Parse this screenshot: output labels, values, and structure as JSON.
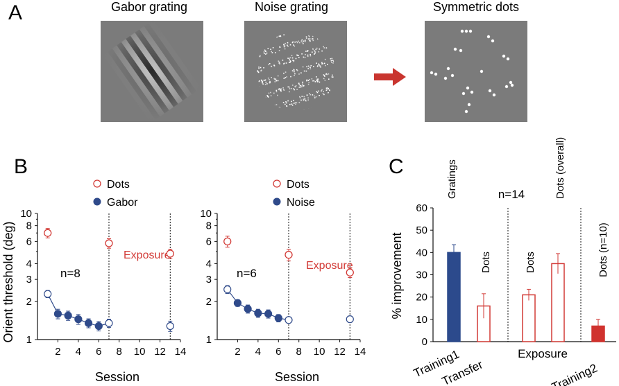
{
  "panel_labels": {
    "a": "A",
    "b": "B",
    "c": "C"
  },
  "panel_a": {
    "images": [
      {
        "title": "Gabor grating"
      },
      {
        "title": "Noise grating"
      },
      {
        "title": "Symmetric dots"
      }
    ]
  },
  "panel_b": {
    "ylabel": "Orient threshold (deg)",
    "xlabel": "Session",
    "ytick_labels": [
      "1",
      "2",
      "3",
      "4",
      "6",
      "8",
      "10"
    ],
    "xtick_labels": [
      "2",
      "4",
      "6",
      "8",
      "10",
      "12",
      "14"
    ],
    "exposure_label": "Exposure"
  },
  "panel_c": {
    "ylabel": "% improvement",
    "n_label": "n=14",
    "ytick_labels": [
      "0",
      "10",
      "20",
      "30",
      "40",
      "50",
      "60"
    ],
    "group_labels": [
      "Training1",
      "Transfer",
      "Exposure",
      "Training2"
    ],
    "bar_labels": [
      "Gratings",
      "Dots",
      "Dots",
      "Dots (overall)",
      "Dots (n=10)"
    ]
  },
  "colors": {
    "navy": "#2f4a8a",
    "red": "#d23a36",
    "bar_fill_navy": "#2c4a8c",
    "bar_fill_red": "#d0322e"
  },
  "chart_data": [
    {
      "type": "scatter",
      "legend": [
        "Dots",
        "Gabor"
      ],
      "n_label": "n=8",
      "xlabel": "Session",
      "ylabel": "Orient threshold (deg)",
      "yscale": "log",
      "ylim": [
        1,
        10
      ],
      "xlim": [
        0,
        14
      ],
      "series": [
        {
          "name": "Dots",
          "x": [
            1,
            7,
            13
          ],
          "y": [
            7.0,
            5.8,
            4.8
          ],
          "err": [
            0.6,
            0.5,
            0.4
          ]
        },
        {
          "name": "Gabor",
          "x": [
            1,
            2,
            3,
            4,
            5,
            6,
            7,
            13
          ],
          "y": [
            2.3,
            1.6,
            1.55,
            1.45,
            1.35,
            1.28,
            1.35,
            1.28
          ],
          "err": [
            0.15,
            0.14,
            0.13,
            0.13,
            0.11,
            0.11,
            0.1,
            0.12
          ]
        }
      ]
    },
    {
      "type": "scatter",
      "legend": [
        "Dots",
        "Noise"
      ],
      "n_label": "n=6",
      "xlabel": "Session",
      "ylabel": "",
      "yscale": "log",
      "ylim": [
        1,
        10
      ],
      "xlim": [
        0,
        14
      ],
      "series": [
        {
          "name": "Dots",
          "x": [
            1,
            7,
            13
          ],
          "y": [
            6.0,
            4.7,
            3.4
          ],
          "err": [
            0.6,
            0.5,
            0.3
          ]
        },
        {
          "name": "Noise",
          "x": [
            1,
            2,
            3,
            4,
            5,
            6,
            7,
            13
          ],
          "y": [
            2.5,
            1.95,
            1.75,
            1.62,
            1.6,
            1.48,
            1.43,
            1.45
          ],
          "err": [
            0.18,
            0.12,
            0.13,
            0.12,
            0.12,
            0.1,
            0.06,
            0.08
          ]
        }
      ]
    },
    {
      "type": "bar",
      "categories": [
        "Gratings",
        "Dots",
        "Dots",
        "Dots (overall)",
        "Dots (n=10)"
      ],
      "values": [
        40,
        16,
        21,
        35,
        7
      ],
      "errors": [
        3.5,
        5.5,
        2.5,
        4.5,
        3
      ],
      "ylabel": "% improvement",
      "ylim": [
        0,
        60
      ]
    }
  ]
}
